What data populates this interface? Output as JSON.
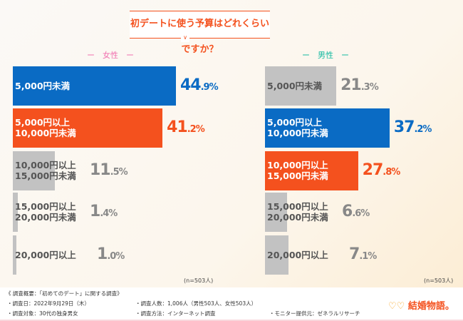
{
  "title": "初デートに使う予算はどれくらいですか？",
  "colors": {
    "blue": "#0a6bc4",
    "orange": "#f4511e",
    "gray": "#c2c2c2",
    "female": "#f06fae",
    "male": "#13b9a0"
  },
  "chart_data": [
    {
      "type": "bar",
      "orientation": "horizontal",
      "title": "女性",
      "categories": [
        "5,000円未満",
        "5,000円以上\n10,000円未満",
        "10,000円以上\n15,000円未満",
        "15,000円以上\n20,000円未満",
        "20,000円以上"
      ],
      "values": [
        44.9,
        41.2,
        11.5,
        1.4,
        1.0
      ],
      "unit": "%",
      "highlight": [
        "blue",
        "orange",
        "gray",
        "gray",
        "gray"
      ],
      "note": "(n=503人)"
    },
    {
      "type": "bar",
      "orientation": "horizontal",
      "title": "男性",
      "categories": [
        "5,000円未満",
        "5,000円以上\n10,000円未満",
        "10,000円以上\n15,000円未満",
        "15,000円以上\n20,000円未満",
        "20,000円以上"
      ],
      "values": [
        21.3,
        37.2,
        27.8,
        6.6,
        7.1
      ],
      "unit": "%",
      "highlight": [
        "gray",
        "blue",
        "orange",
        "gray",
        "gray"
      ],
      "note": "(n=503人)"
    }
  ],
  "footer": {
    "heading": "《 調査概要：「初めてのデート」に関する調査》",
    "date": "・調査日：2022年9月29日（木）",
    "target": "・調査対象：30代の独身男女",
    "count": "・調査人数：1,006人（男性503人、女性503人）",
    "method": "・調査方法：インターネット調査",
    "provider": "・モニター提供元：ゼネラルリサーチ",
    "logo": "結婚物語。"
  }
}
